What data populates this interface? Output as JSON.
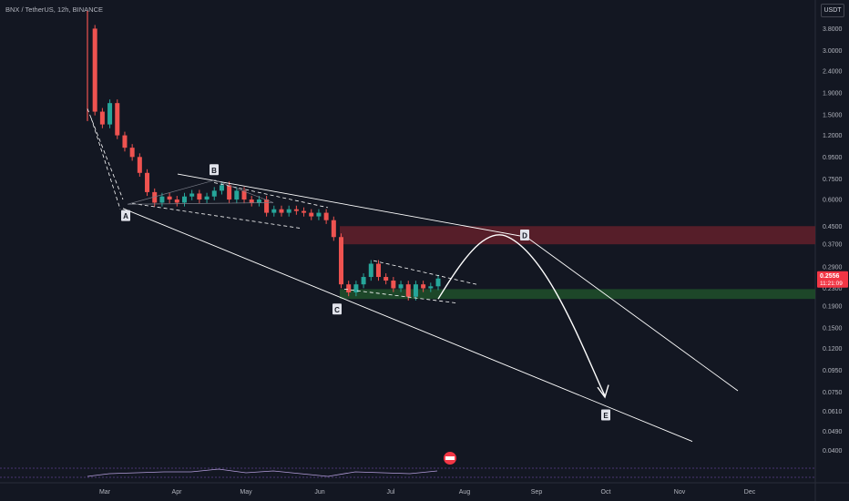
{
  "header": {
    "title": "BNX / TetherUS, 12h, BINANCE",
    "currency_badge": "USDT"
  },
  "price_tag": {
    "price": "0.2556",
    "countdown": "11:21:09",
    "color": "#f23645"
  },
  "colors": {
    "background": "#131722",
    "up_candle": "#26a69a",
    "down_candle": "#ef5350",
    "pattern_lines": "#ffffff",
    "resistance_zone": "#5e1f2a",
    "support_zone": "#1d4a2a",
    "axis_text": "#b2b5be"
  },
  "chart_data": {
    "type": "line",
    "title": "BNX / TetherUS, 12h, BINANCE",
    "y_scale": "log",
    "ylim": [
      0.036,
      4.6
    ],
    "ylabels": [
      "3.8000",
      "3.0000",
      "2.4000",
      "1.9000",
      "1.5000",
      "1.2000",
      "0.9500",
      "0.7500",
      "0.6000",
      "0.4500",
      "0.3700",
      "0.2900",
      "0.2300",
      "0.1900",
      "0.1500",
      "0.1200",
      "0.0950",
      "0.0750",
      "0.0610",
      "0.0490",
      "0.0400"
    ],
    "xlabels": [
      "Mar",
      "Apr",
      "May",
      "Jun",
      "Jul",
      "Aug",
      "Sep",
      "Oct",
      "Nov",
      "Dec"
    ],
    "series": [
      {
        "values": [
          3.8,
          1.55,
          1.35,
          1.7,
          1.2,
          1.05,
          0.95,
          0.8,
          0.65,
          0.58,
          0.62,
          0.6,
          0.58,
          0.62,
          0.64,
          0.6,
          0.62,
          0.66,
          0.7,
          0.6,
          0.66,
          0.6,
          0.58,
          0.6,
          0.52,
          0.54,
          0.52,
          0.54,
          0.53,
          0.52,
          0.5,
          0.52,
          0.48,
          0.4,
          0.24,
          0.22,
          0.24,
          0.26,
          0.3,
          0.26,
          0.25,
          0.23,
          0.24,
          0.21,
          0.24,
          0.23,
          0.235,
          0.2556
        ]
      }
    ],
    "annotations": [
      "A",
      "B",
      "C",
      "D",
      "E"
    ],
    "zones": [
      {
        "name": "resistance",
        "from": 0.37,
        "to": 0.45
      },
      {
        "name": "support",
        "from": 0.205,
        "to": 0.228
      }
    ],
    "grid": false,
    "legend": "none"
  }
}
